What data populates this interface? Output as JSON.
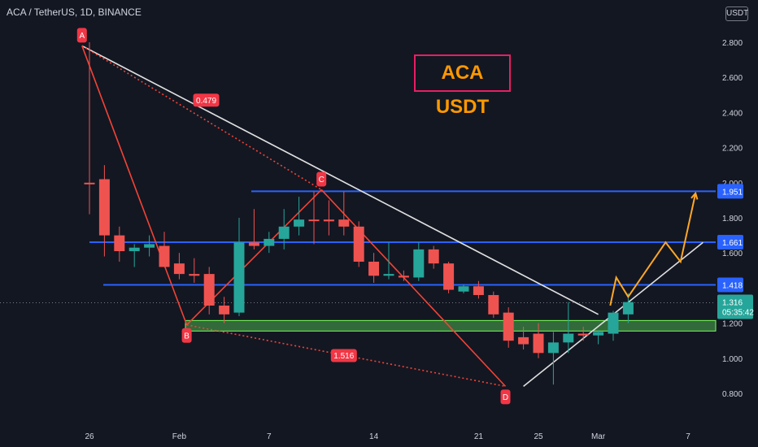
{
  "header": {
    "symbol_title": "ACA / TetherUS, 1D, BINANCE",
    "currency": "USDT"
  },
  "annotation": {
    "big_label": "ACA USDT",
    "big_label_color": "#ff9800",
    "big_label_border": "#e91e63"
  },
  "colors": {
    "background": "#131722",
    "bull": "#26a69a",
    "bear": "#ef5350",
    "level_line": "#2962ff",
    "trendline": "#e0e0e0",
    "pattern": "#f44336",
    "projection": "#ffa726",
    "zone": "#4caf50"
  },
  "chart_data": {
    "type": "candlestick",
    "y_axis": {
      "min": 0.7,
      "max": 3.0,
      "ticks": [
        "2.800",
        "2.600",
        "2.400",
        "2.200",
        "2.000",
        "1.800",
        "1.600",
        "1.200",
        "1.000",
        "0.800"
      ]
    },
    "x_axis": {
      "ticks": [
        {
          "label": "26",
          "i": 0
        },
        {
          "label": "Feb",
          "i": 6
        },
        {
          "label": "7",
          "i": 12
        },
        {
          "label": "14",
          "i": 19
        },
        {
          "label": "21",
          "i": 26
        },
        {
          "label": "25",
          "i": 30
        },
        {
          "label": "Mar",
          "i": 34
        },
        {
          "label": "7",
          "i": 40
        }
      ]
    },
    "candles": [
      {
        "o": 2.0,
        "h": 2.8,
        "l": 1.82,
        "c": 2.0
      },
      {
        "o": 2.02,
        "h": 2.1,
        "l": 1.58,
        "c": 1.7
      },
      {
        "o": 1.7,
        "h": 1.75,
        "l": 1.55,
        "c": 1.61
      },
      {
        "o": 1.61,
        "h": 1.65,
        "l": 1.52,
        "c": 1.63
      },
      {
        "o": 1.63,
        "h": 1.7,
        "l": 1.58,
        "c": 1.65
      },
      {
        "o": 1.64,
        "h": 1.72,
        "l": 1.52,
        "c": 1.52
      },
      {
        "o": 1.54,
        "h": 1.6,
        "l": 1.45,
        "c": 1.48
      },
      {
        "o": 1.48,
        "h": 1.57,
        "l": 1.43,
        "c": 1.47
      },
      {
        "o": 1.48,
        "h": 1.52,
        "l": 1.25,
        "c": 1.3
      },
      {
        "o": 1.3,
        "h": 1.35,
        "l": 1.2,
        "c": 1.25
      },
      {
        "o": 1.26,
        "h": 1.8,
        "l": 1.24,
        "c": 1.66
      },
      {
        "o": 1.66,
        "h": 1.85,
        "l": 1.62,
        "c": 1.64
      },
      {
        "o": 1.64,
        "h": 1.72,
        "l": 1.6,
        "c": 1.68
      },
      {
        "o": 1.68,
        "h": 1.85,
        "l": 1.62,
        "c": 1.75
      },
      {
        "o": 1.75,
        "h": 1.92,
        "l": 1.7,
        "c": 1.79
      },
      {
        "o": 1.79,
        "h": 1.95,
        "l": 1.65,
        "c": 1.79
      },
      {
        "o": 1.79,
        "h": 1.9,
        "l": 1.7,
        "c": 1.78
      },
      {
        "o": 1.79,
        "h": 1.95,
        "l": 1.7,
        "c": 1.75
      },
      {
        "o": 1.75,
        "h": 1.78,
        "l": 1.52,
        "c": 1.55
      },
      {
        "o": 1.55,
        "h": 1.6,
        "l": 1.43,
        "c": 1.47
      },
      {
        "o": 1.47,
        "h": 1.66,
        "l": 1.45,
        "c": 1.48
      },
      {
        "o": 1.47,
        "h": 1.5,
        "l": 1.44,
        "c": 1.46
      },
      {
        "o": 1.46,
        "h": 1.66,
        "l": 1.44,
        "c": 1.62
      },
      {
        "o": 1.62,
        "h": 1.64,
        "l": 1.51,
        "c": 1.54
      },
      {
        "o": 1.54,
        "h": 1.55,
        "l": 1.37,
        "c": 1.39
      },
      {
        "o": 1.38,
        "h": 1.42,
        "l": 1.37,
        "c": 1.41
      },
      {
        "o": 1.41,
        "h": 1.44,
        "l": 1.34,
        "c": 1.36
      },
      {
        "o": 1.36,
        "h": 1.38,
        "l": 1.23,
        "c": 1.25
      },
      {
        "o": 1.26,
        "h": 1.29,
        "l": 1.06,
        "c": 1.1
      },
      {
        "o": 1.12,
        "h": 1.18,
        "l": 1.05,
        "c": 1.08
      },
      {
        "o": 1.14,
        "h": 1.2,
        "l": 1.0,
        "c": 1.03
      },
      {
        "o": 1.03,
        "h": 1.15,
        "l": 0.85,
        "c": 1.09
      },
      {
        "o": 1.09,
        "h": 1.32,
        "l": 1.03,
        "c": 1.14
      },
      {
        "o": 1.14,
        "h": 1.18,
        "l": 1.1,
        "c": 1.13
      },
      {
        "o": 1.13,
        "h": 1.16,
        "l": 1.08,
        "c": 1.15
      },
      {
        "o": 1.14,
        "h": 1.27,
        "l": 1.1,
        "c": 1.26
      },
      {
        "o": 1.25,
        "h": 1.37,
        "l": 1.2,
        "c": 1.32
      }
    ],
    "levels": [
      {
        "value": 1.951,
        "label": "1.951"
      },
      {
        "value": 1.661,
        "label": "1.661"
      },
      {
        "value": 1.418,
        "label": "1.418"
      }
    ],
    "current_price": {
      "value": 1.316,
      "label": "1.316",
      "countdown": "05:35:42"
    },
    "support_zone": {
      "from": 1.155,
      "to": 1.215
    },
    "xabcd_points": [
      {
        "label": "A",
        "i": -0.5,
        "v": 2.78
      },
      {
        "label": "B",
        "i": 6.5,
        "v": 1.19
      },
      {
        "label": "C",
        "i": 15.5,
        "v": 1.96
      },
      {
        "label": "D",
        "i": 27.8,
        "v": 0.84
      }
    ],
    "ratios": [
      {
        "label": "0.479",
        "i": 7.8,
        "v": 2.47
      },
      {
        "label": "1.516",
        "i": 17.0,
        "v": 1.015
      }
    ],
    "trendlines": [
      {
        "from": {
          "i": -0.5,
          "v": 2.78
        },
        "to": {
          "i": 34.0,
          "v": 1.25
        }
      },
      {
        "from": {
          "i": 29.0,
          "v": 0.84
        },
        "to": {
          "i": 41.0,
          "v": 1.66
        }
      }
    ],
    "projection_path": [
      {
        "i": 34.8,
        "v": 1.3
      },
      {
        "i": 35.2,
        "v": 1.46
      },
      {
        "i": 36.0,
        "v": 1.35
      },
      {
        "i": 38.5,
        "v": 1.66
      },
      {
        "i": 39.5,
        "v": 1.55
      },
      {
        "i": 40.5,
        "v": 1.94
      }
    ]
  }
}
